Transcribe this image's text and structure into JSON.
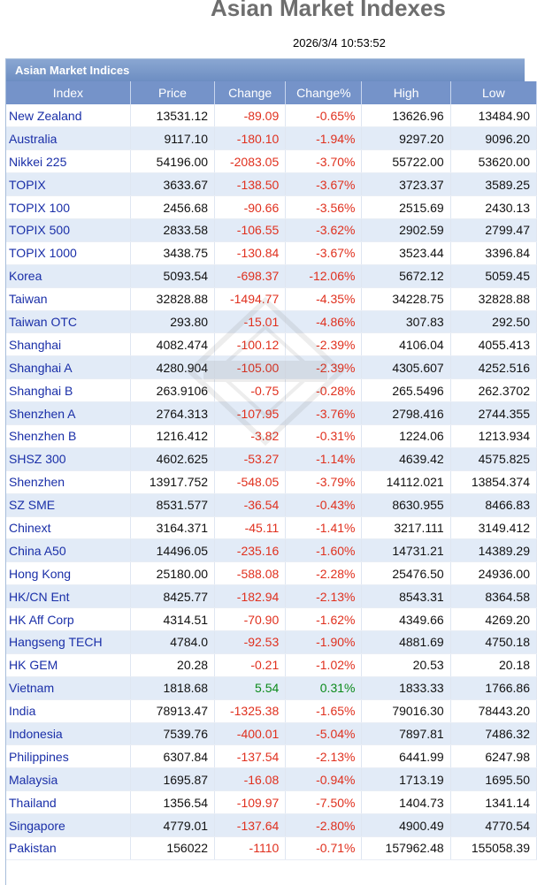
{
  "page_title": "Asian Market Indexes",
  "timestamp": "2026/3/4   10:53:52",
  "panel_title": "Asian Market Indices",
  "columns": [
    "Index",
    "Price",
    "Change",
    "Change%",
    "High",
    "Low"
  ],
  "rows": [
    {
      "name": "New Zealand",
      "price": "13531.12",
      "change": "-89.09",
      "pct": "-0.65%",
      "high": "13626.96",
      "low": "13484.90",
      "dir": "neg"
    },
    {
      "name": "Australia",
      "price": "9117.10",
      "change": "-180.10",
      "pct": "-1.94%",
      "high": "9297.20",
      "low": "9096.20",
      "dir": "neg"
    },
    {
      "name": "Nikkei 225",
      "price": "54196.00",
      "change": "-2083.05",
      "pct": "-3.70%",
      "high": "55722.00",
      "low": "53620.00",
      "dir": "neg"
    },
    {
      "name": "TOPIX",
      "price": "3633.67",
      "change": "-138.50",
      "pct": "-3.67%",
      "high": "3723.37",
      "low": "3589.25",
      "dir": "neg"
    },
    {
      "name": "TOPIX 100",
      "price": "2456.68",
      "change": "-90.66",
      "pct": "-3.56%",
      "high": "2515.69",
      "low": "2430.13",
      "dir": "neg"
    },
    {
      "name": "TOPIX 500",
      "price": "2833.58",
      "change": "-106.55",
      "pct": "-3.62%",
      "high": "2902.59",
      "low": "2799.47",
      "dir": "neg"
    },
    {
      "name": "TOPIX 1000",
      "price": "3438.75",
      "change": "-130.84",
      "pct": "-3.67%",
      "high": "3523.44",
      "low": "3396.84",
      "dir": "neg"
    },
    {
      "name": "Korea",
      "price": "5093.54",
      "change": "-698.37",
      "pct": "-12.06%",
      "high": "5672.12",
      "low": "5059.45",
      "dir": "neg"
    },
    {
      "name": "Taiwan",
      "price": "32828.88",
      "change": "-1494.77",
      "pct": "-4.35%",
      "high": "34228.75",
      "low": "32828.88",
      "dir": "neg"
    },
    {
      "name": "Taiwan OTC",
      "price": "293.80",
      "change": "-15.01",
      "pct": "-4.86%",
      "high": "307.83",
      "low": "292.50",
      "dir": "neg"
    },
    {
      "name": "Shanghai",
      "price": "4082.474",
      "change": "-100.12",
      "pct": "-2.39%",
      "high": "4106.04",
      "low": "4055.413",
      "dir": "neg"
    },
    {
      "name": "Shanghai A",
      "price": "4280.904",
      "change": "-105.00",
      "pct": "-2.39%",
      "high": "4305.607",
      "low": "4252.516",
      "dir": "neg"
    },
    {
      "name": "Shanghai B",
      "price": "263.9106",
      "change": "-0.75",
      "pct": "-0.28%",
      "high": "265.5496",
      "low": "262.3702",
      "dir": "neg"
    },
    {
      "name": "Shenzhen A",
      "price": "2764.313",
      "change": "-107.95",
      "pct": "-3.76%",
      "high": "2798.416",
      "low": "2744.355",
      "dir": "neg"
    },
    {
      "name": "Shenzhen B",
      "price": "1216.412",
      "change": "-3.82",
      "pct": "-0.31%",
      "high": "1224.06",
      "low": "1213.934",
      "dir": "neg"
    },
    {
      "name": "SHSZ 300",
      "price": "4602.625",
      "change": "-53.27",
      "pct": "-1.14%",
      "high": "4639.42",
      "low": "4575.825",
      "dir": "neg"
    },
    {
      "name": "Shenzhen",
      "price": "13917.752",
      "change": "-548.05",
      "pct": "-3.79%",
      "high": "14112.021",
      "low": "13854.374",
      "dir": "neg"
    },
    {
      "name": "SZ SME",
      "price": "8531.577",
      "change": "-36.54",
      "pct": "-0.43%",
      "high": "8630.955",
      "low": "8466.83",
      "dir": "neg"
    },
    {
      "name": "Chinext",
      "price": "3164.371",
      "change": "-45.11",
      "pct": "-1.41%",
      "high": "3217.111",
      "low": "3149.412",
      "dir": "neg"
    },
    {
      "name": "China A50",
      "price": "14496.05",
      "change": "-235.16",
      "pct": "-1.60%",
      "high": "14731.21",
      "low": "14389.29",
      "dir": "neg"
    },
    {
      "name": "Hong Kong",
      "price": "25180.00",
      "change": "-588.08",
      "pct": "-2.28%",
      "high": "25476.50",
      "low": "24936.00",
      "dir": "neg"
    },
    {
      "name": "HK/CN Ent",
      "price": "8425.77",
      "change": "-182.94",
      "pct": "-2.13%",
      "high": "8543.31",
      "low": "8364.58",
      "dir": "neg"
    },
    {
      "name": "HK Aff Corp",
      "price": "4314.51",
      "change": "-70.90",
      "pct": "-1.62%",
      "high": "4349.66",
      "low": "4269.20",
      "dir": "neg"
    },
    {
      "name": "Hangseng TECH",
      "price": "4784.0",
      "change": "-92.53",
      "pct": "-1.90%",
      "high": "4881.69",
      "low": "4750.18",
      "dir": "neg"
    },
    {
      "name": "HK GEM",
      "price": "20.28",
      "change": "-0.21",
      "pct": "-1.02%",
      "high": "20.53",
      "low": "20.18",
      "dir": "neg"
    },
    {
      "name": "Vietnam",
      "price": "1818.68",
      "change": "5.54",
      "pct": "0.31%",
      "high": "1833.33",
      "low": "1766.86",
      "dir": "pos"
    },
    {
      "name": "India",
      "price": "78913.47",
      "change": "-1325.38",
      "pct": "-1.65%",
      "high": "79016.30",
      "low": "78443.20",
      "dir": "neg"
    },
    {
      "name": "Indonesia",
      "price": "7539.76",
      "change": "-400.01",
      "pct": "-5.04%",
      "high": "7897.81",
      "low": "7486.32",
      "dir": "neg"
    },
    {
      "name": "Philippines",
      "price": "6307.84",
      "change": "-137.54",
      "pct": "-2.13%",
      "high": "6441.99",
      "low": "6247.98",
      "dir": "neg"
    },
    {
      "name": "Malaysia",
      "price": "1695.87",
      "change": "-16.08",
      "pct": "-0.94%",
      "high": "1713.19",
      "low": "1695.50",
      "dir": "neg"
    },
    {
      "name": "Thailand",
      "price": "1356.54",
      "change": "-109.97",
      "pct": "-7.50%",
      "high": "1404.73",
      "low": "1341.14",
      "dir": "neg"
    },
    {
      "name": "Singapore",
      "price": "4779.01",
      "change": "-137.64",
      "pct": "-2.80%",
      "high": "4900.49",
      "low": "4770.54",
      "dir": "neg"
    },
    {
      "name": "Pakistan",
      "price": "156022",
      "change": "-1110",
      "pct": "-0.71%",
      "high": "157962.48",
      "low": "155058.39",
      "dir": "neg"
    }
  ],
  "colors": {
    "negative": "#e0301e",
    "positive": "#0b8a1a",
    "index_name": "#1a2fa8",
    "header_bg": "#7593c9"
  }
}
